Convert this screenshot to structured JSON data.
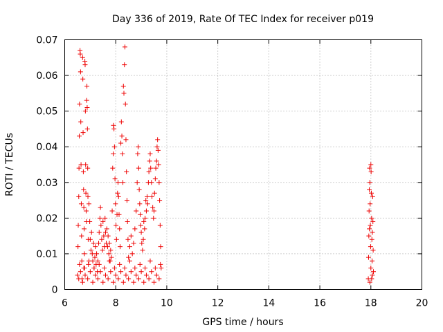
{
  "chart_data": {
    "type": "scatter",
    "title": "Day 336 of 2019, Rate Of TEC Index for receiver p019",
    "xlabel": "GPS time / hours",
    "ylabel": "ROTI / TECUs",
    "xlim": [
      6,
      20
    ],
    "ylim": [
      0,
      0.07
    ],
    "xticks": [
      "6",
      "8",
      "10",
      "12",
      "14",
      "16",
      "18",
      "20"
    ],
    "yticks": [
      "0",
      "0.01",
      "0.02",
      "0.03",
      "0.04",
      "0.05",
      "0.06",
      "0.07"
    ],
    "grid": true,
    "marker_color": "#ee0000",
    "series": [
      {
        "name": "ROTI",
        "points": [
          [
            6.5,
            0.004
          ],
          [
            6.52,
            0.012
          ],
          [
            6.53,
            0.018
          ],
          [
            6.55,
            0.026
          ],
          [
            6.56,
            0.034
          ],
          [
            6.57,
            0.043
          ],
          [
            6.58,
            0.052
          ],
          [
            6.6,
            0.067
          ],
          [
            6.61,
            0.066
          ],
          [
            6.62,
            0.061
          ],
          [
            6.63,
            0.047
          ],
          [
            6.64,
            0.035
          ],
          [
            6.65,
            0.024
          ],
          [
            6.66,
            0.015
          ],
          [
            6.67,
            0.008
          ],
          [
            6.68,
            0.003
          ],
          [
            6.7,
            0.065
          ],
          [
            6.71,
            0.059
          ],
          [
            6.72,
            0.044
          ],
          [
            6.73,
            0.033
          ],
          [
            6.74,
            0.028
          ],
          [
            6.75,
            0.023
          ],
          [
            6.76,
            0.017
          ],
          [
            6.77,
            0.01
          ],
          [
            6.78,
            0.006
          ],
          [
            6.79,
            0.064
          ],
          [
            6.8,
            0.063
          ],
          [
            6.81,
            0.05
          ],
          [
            6.82,
            0.035
          ],
          [
            6.83,
            0.027
          ],
          [
            6.84,
            0.022
          ],
          [
            6.85,
            0.019
          ],
          [
            6.86,
            0.053
          ],
          [
            6.87,
            0.057
          ],
          [
            6.88,
            0.051
          ],
          [
            6.89,
            0.045
          ],
          [
            6.9,
            0.034
          ],
          [
            6.91,
            0.026
          ],
          [
            6.92,
            0.014
          ],
          [
            6.93,
            0.007
          ],
          [
            6.95,
            0.024
          ],
          [
            6.98,
            0.019
          ],
          [
            7.0,
            0.014
          ],
          [
            7.03,
            0.011
          ],
          [
            7.05,
            0.016
          ],
          [
            7.08,
            0.01
          ],
          [
            7.1,
            0.008
          ],
          [
            7.13,
            0.013
          ],
          [
            7.15,
            0.006
          ],
          [
            7.18,
            0.009
          ],
          [
            7.2,
            0.012
          ],
          [
            7.23,
            0.007
          ],
          [
            7.25,
            0.01
          ],
          [
            7.28,
            0.005
          ],
          [
            7.3,
            0.008
          ],
          [
            7.33,
            0.013
          ],
          [
            7.35,
            0.016
          ],
          [
            7.38,
            0.02
          ],
          [
            7.4,
            0.023
          ],
          [
            7.42,
            0.018
          ],
          [
            7.45,
            0.014
          ],
          [
            7.48,
            0.011
          ],
          [
            7.5,
            0.019
          ],
          [
            7.53,
            0.015
          ],
          [
            7.55,
            0.012
          ],
          [
            7.58,
            0.02
          ],
          [
            7.6,
            0.016
          ],
          [
            7.63,
            0.013
          ],
          [
            7.65,
            0.017
          ],
          [
            7.68,
            0.012
          ],
          [
            7.7,
            0.015
          ],
          [
            7.73,
            0.01
          ],
          [
            7.75,
            0.013
          ],
          [
            7.78,
            0.008
          ],
          [
            7.8,
            0.011
          ],
          [
            7.83,
            0.009
          ],
          [
            7.86,
            0.022
          ],
          [
            7.88,
            0.034
          ],
          [
            7.9,
            0.038
          ],
          [
            7.91,
            0.046
          ],
          [
            7.93,
            0.045
          ],
          [
            7.95,
            0.04
          ],
          [
            7.97,
            0.031
          ],
          [
            7.99,
            0.024
          ],
          [
            8.01,
            0.018
          ],
          [
            8.03,
            0.014
          ],
          [
            8.05,
            0.021
          ],
          [
            8.07,
            0.027
          ],
          [
            8.09,
            0.03
          ],
          [
            8.11,
            0.026
          ],
          [
            8.13,
            0.021
          ],
          [
            8.15,
            0.017
          ],
          [
            8.17,
            0.012
          ],
          [
            8.2,
            0.041
          ],
          [
            8.22,
            0.047
          ],
          [
            8.24,
            0.043
          ],
          [
            8.26,
            0.038
          ],
          [
            8.28,
            0.03
          ],
          [
            8.3,
            0.057
          ],
          [
            8.32,
            0.055
          ],
          [
            8.34,
            0.063
          ],
          [
            8.36,
            0.068
          ],
          [
            8.38,
            0.052
          ],
          [
            8.4,
            0.042
          ],
          [
            8.42,
            0.033
          ],
          [
            8.44,
            0.025
          ],
          [
            8.46,
            0.019
          ],
          [
            8.48,
            0.014
          ],
          [
            8.5,
            0.009
          ],
          [
            8.55,
            0.012
          ],
          [
            8.6,
            0.015
          ],
          [
            8.65,
            0.01
          ],
          [
            8.7,
            0.013
          ],
          [
            8.75,
            0.017
          ],
          [
            8.8,
            0.022
          ],
          [
            8.84,
            0.03
          ],
          [
            8.86,
            0.038
          ],
          [
            8.88,
            0.04
          ],
          [
            8.9,
            0.034
          ],
          [
            8.92,
            0.028
          ],
          [
            8.94,
            0.024
          ],
          [
            8.96,
            0.021
          ],
          [
            8.98,
            0.018
          ],
          [
            9.0,
            0.016
          ],
          [
            9.02,
            0.013
          ],
          [
            9.05,
            0.011
          ],
          [
            9.08,
            0.014
          ],
          [
            9.1,
            0.019
          ],
          [
            9.13,
            0.017
          ],
          [
            9.15,
            0.02
          ],
          [
            9.18,
            0.025
          ],
          [
            9.2,
            0.022
          ],
          [
            9.23,
            0.026
          ],
          [
            9.25,
            0.024
          ],
          [
            9.28,
            0.03
          ],
          [
            9.3,
            0.033
          ],
          [
            9.33,
            0.036
          ],
          [
            9.35,
            0.038
          ],
          [
            9.37,
            0.034
          ],
          [
            9.4,
            0.03
          ],
          [
            9.42,
            0.026
          ],
          [
            9.45,
            0.023
          ],
          [
            9.48,
            0.02
          ],
          [
            9.5,
            0.022
          ],
          [
            9.52,
            0.027
          ],
          [
            9.55,
            0.031
          ],
          [
            9.57,
            0.034
          ],
          [
            9.6,
            0.036
          ],
          [
            9.62,
            0.04
          ],
          [
            9.64,
            0.042
          ],
          [
            9.66,
            0.039
          ],
          [
            9.68,
            0.035
          ],
          [
            9.7,
            0.03
          ],
          [
            9.72,
            0.025
          ],
          [
            9.74,
            0.018
          ],
          [
            9.76,
            0.012
          ],
          [
            9.78,
            0.006
          ],
          [
            6.55,
            0.003
          ],
          [
            6.62,
            0.005
          ],
          [
            6.7,
            0.002
          ],
          [
            6.8,
            0.004
          ],
          [
            6.9,
            0.003
          ],
          [
            7.0,
            0.005
          ],
          [
            7.1,
            0.002
          ],
          [
            7.2,
            0.004
          ],
          [
            7.3,
            0.003
          ],
          [
            7.4,
            0.005
          ],
          [
            7.5,
            0.002
          ],
          [
            7.6,
            0.004
          ],
          [
            7.7,
            0.003
          ],
          [
            7.8,
            0.005
          ],
          [
            7.9,
            0.002
          ],
          [
            8.0,
            0.004
          ],
          [
            8.1,
            0.003
          ],
          [
            8.2,
            0.005
          ],
          [
            8.3,
            0.002
          ],
          [
            8.4,
            0.004
          ],
          [
            8.5,
            0.003
          ],
          [
            8.6,
            0.005
          ],
          [
            8.7,
            0.002
          ],
          [
            8.8,
            0.004
          ],
          [
            8.9,
            0.003
          ],
          [
            9.0,
            0.005
          ],
          [
            9.1,
            0.002
          ],
          [
            9.2,
            0.004
          ],
          [
            9.3,
            0.003
          ],
          [
            9.4,
            0.005
          ],
          [
            9.5,
            0.002
          ],
          [
            9.6,
            0.004
          ],
          [
            9.7,
            0.003
          ],
          [
            6.58,
            0.007
          ],
          [
            6.75,
            0.006
          ],
          [
            6.95,
            0.008
          ],
          [
            7.15,
            0.006
          ],
          [
            7.35,
            0.007
          ],
          [
            7.55,
            0.006
          ],
          [
            7.75,
            0.008
          ],
          [
            7.95,
            0.006
          ],
          [
            8.15,
            0.007
          ],
          [
            8.35,
            0.006
          ],
          [
            8.55,
            0.008
          ],
          [
            8.75,
            0.006
          ],
          [
            8.95,
            0.007
          ],
          [
            9.15,
            0.006
          ],
          [
            9.35,
            0.008
          ],
          [
            9.55,
            0.006
          ],
          [
            9.75,
            0.007
          ],
          [
            17.9,
            0.003
          ],
          [
            17.91,
            0.009
          ],
          [
            17.92,
            0.015
          ],
          [
            17.93,
            0.022
          ],
          [
            17.94,
            0.028
          ],
          [
            17.95,
            0.034
          ],
          [
            17.96,
            0.03
          ],
          [
            17.97,
            0.024
          ],
          [
            17.98,
            0.018
          ],
          [
            17.99,
            0.012
          ],
          [
            18.0,
            0.006
          ],
          [
            18.01,
            0.033
          ],
          [
            18.02,
            0.027
          ],
          [
            18.03,
            0.02
          ],
          [
            18.04,
            0.014
          ],
          [
            18.05,
            0.008
          ],
          [
            18.06,
            0.004
          ],
          [
            18.07,
            0.026
          ],
          [
            18.08,
            0.019
          ],
          [
            18.09,
            0.011
          ],
          [
            18.1,
            0.005
          ],
          [
            17.96,
            0.002
          ],
          [
            18.03,
            0.003
          ],
          [
            18.0,
            0.035
          ],
          [
            17.94,
            0.017
          ],
          [
            18.06,
            0.016
          ]
        ]
      }
    ]
  }
}
